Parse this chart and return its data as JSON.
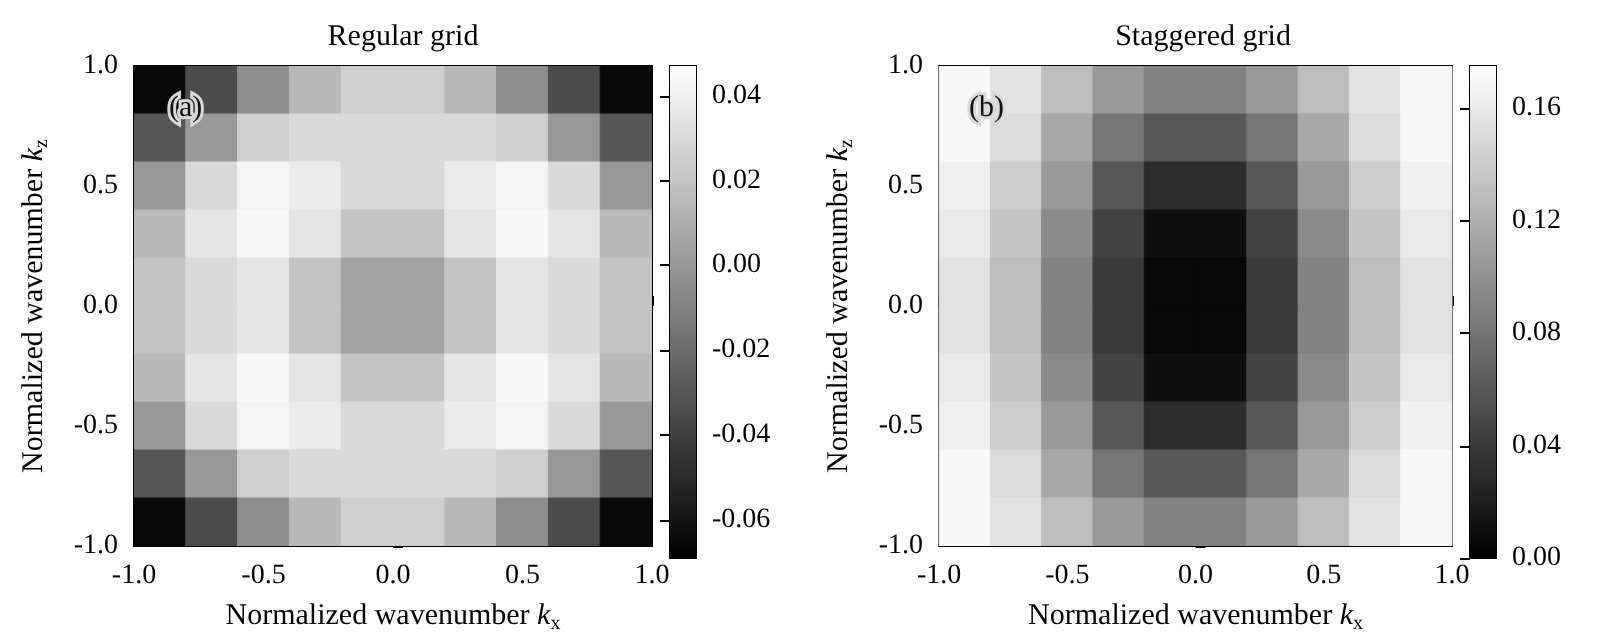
{
  "chart_data": [
    {
      "type": "heatmap",
      "title": "Regular grid",
      "xlabel": "Normalized wavenumber k$_{x}$",
      "ylabel": "Normalized wavenumber k$_{z}$",
      "annotations": [
        "(a)"
      ],
      "x": [
        -0.9,
        -0.7,
        -0.5,
        -0.3,
        -0.1,
        0.1,
        0.3,
        0.5,
        0.7,
        0.9
      ],
      "y": [
        0.9,
        0.7,
        0.5,
        0.3,
        0.1,
        -0.1,
        -0.3,
        -0.5,
        -0.7,
        -0.9
      ],
      "xlim": [
        -1,
        1
      ],
      "ylim": [
        -1,
        1
      ],
      "xticks": [
        {
          "value": -1,
          "label": "-1.0"
        },
        {
          "value": -0.5,
          "label": "-0.5"
        },
        {
          "value": 0,
          "label": "0.0"
        },
        {
          "value": 0.5,
          "label": "0.5"
        },
        {
          "value": 1,
          "label": "1.0"
        }
      ],
      "yticks": [
        {
          "value": -1,
          "label": "-1.0"
        },
        {
          "value": -0.5,
          "label": "-0.5"
        },
        {
          "value": 0,
          "label": "0.0"
        },
        {
          "value": 0.5,
          "label": "0.5"
        },
        {
          "value": 1,
          "label": "1.0"
        }
      ],
      "clim": [
        -0.069,
        0.047
      ],
      "cticks": [
        {
          "value": -0.06,
          "label": "-0.06"
        },
        {
          "value": -0.04,
          "label": "-0.04"
        },
        {
          "value": -0.02,
          "label": "-0.02"
        },
        {
          "value": 0,
          "label": "0.00"
        },
        {
          "value": 0.02,
          "label": "0.02"
        },
        {
          "value": 0.04,
          "label": "0.04"
        }
      ],
      "cells": [
        [
          -0.065,
          -0.035,
          -0.005,
          0.015,
          0.025,
          0.025,
          0.015,
          -0.005,
          -0.035,
          -0.065
        ],
        [
          -0.03,
          0,
          0.025,
          0.03,
          0.03,
          0.03,
          0.03,
          0.025,
          0,
          -0.03
        ],
        [
          0,
          0.03,
          0.042,
          0.038,
          0.03,
          0.03,
          0.038,
          0.042,
          0.03,
          0
        ],
        [
          0.015,
          0.035,
          0.044,
          0.035,
          0.02,
          0.02,
          0.035,
          0.044,
          0.035,
          0.015
        ],
        [
          0.02,
          0.03,
          0.035,
          0.02,
          0.005,
          0.005,
          0.02,
          0.035,
          0.03,
          0.02
        ],
        [
          0.02,
          0.03,
          0.035,
          0.02,
          0.005,
          0.005,
          0.02,
          0.035,
          0.03,
          0.02
        ],
        [
          0.015,
          0.035,
          0.044,
          0.035,
          0.02,
          0.02,
          0.035,
          0.044,
          0.035,
          0.015
        ],
        [
          0,
          0.03,
          0.042,
          0.038,
          0.03,
          0.03,
          0.038,
          0.042,
          0.03,
          0
        ],
        [
          -0.03,
          0,
          0.025,
          0.03,
          0.03,
          0.03,
          0.03,
          0.025,
          0,
          -0.03
        ],
        [
          -0.065,
          -0.035,
          -0.005,
          0.015,
          0.025,
          0.025,
          0.015,
          -0.005,
          -0.035,
          -0.065
        ]
      ]
    },
    {
      "type": "heatmap",
      "title": "Staggered grid",
      "xlabel": "Normalized wavenumber k$_{x}$",
      "ylabel": "Normalized wavenumber k$_{z}$",
      "annotations": [
        "(b)"
      ],
      "x": [
        -0.9,
        -0.7,
        -0.5,
        -0.3,
        -0.1,
        0.1,
        0.3,
        0.5,
        0.7,
        0.9
      ],
      "y": [
        0.9,
        0.7,
        0.5,
        0.3,
        0.1,
        -0.1,
        -0.3,
        -0.5,
        -0.7,
        -0.9
      ],
      "xlim": [
        -1,
        1
      ],
      "ylim": [
        -1,
        1
      ],
      "xticks": [
        {
          "value": -1,
          "label": "-1.0"
        },
        {
          "value": -0.5,
          "label": "-0.5"
        },
        {
          "value": 0,
          "label": "0.0"
        },
        {
          "value": 0.5,
          "label": "0.5"
        },
        {
          "value": 1,
          "label": "1.0"
        }
      ],
      "yticks": [
        {
          "value": -1,
          "label": "-1.0"
        },
        {
          "value": -0.5,
          "label": "-0.5"
        },
        {
          "value": 0,
          "label": "0.0"
        },
        {
          "value": 0.5,
          "label": "0.5"
        },
        {
          "value": 1,
          "label": "1.0"
        }
      ],
      "clim": [
        0,
        0.175
      ],
      "cticks": [
        {
          "value": 0,
          "label": "0.00"
        },
        {
          "value": 0.04,
          "label": "0.04"
        },
        {
          "value": 0.08,
          "label": "0.08"
        },
        {
          "value": 0.12,
          "label": "0.12"
        },
        {
          "value": 0.16,
          "label": "0.16"
        }
      ],
      "cells": [
        [
          0.17,
          0.155,
          0.13,
          0.105,
          0.09,
          0.09,
          0.105,
          0.13,
          0.155,
          0.17
        ],
        [
          0.17,
          0.15,
          0.115,
          0.08,
          0.06,
          0.06,
          0.08,
          0.115,
          0.15,
          0.17
        ],
        [
          0.165,
          0.14,
          0.105,
          0.06,
          0.03,
          0.03,
          0.06,
          0.105,
          0.14,
          0.165
        ],
        [
          0.16,
          0.135,
          0.095,
          0.045,
          0.01,
          0.01,
          0.045,
          0.095,
          0.135,
          0.16
        ],
        [
          0.155,
          0.13,
          0.09,
          0.04,
          0.005,
          0.005,
          0.04,
          0.09,
          0.13,
          0.155
        ],
        [
          0.155,
          0.13,
          0.09,
          0.04,
          0.005,
          0.005,
          0.04,
          0.09,
          0.13,
          0.155
        ],
        [
          0.16,
          0.135,
          0.095,
          0.045,
          0.01,
          0.01,
          0.045,
          0.095,
          0.135,
          0.16
        ],
        [
          0.165,
          0.14,
          0.105,
          0.06,
          0.03,
          0.03,
          0.06,
          0.105,
          0.14,
          0.165
        ],
        [
          0.17,
          0.15,
          0.115,
          0.08,
          0.06,
          0.06,
          0.08,
          0.115,
          0.15,
          0.17
        ],
        [
          0.17,
          0.155,
          0.13,
          0.105,
          0.09,
          0.09,
          0.105,
          0.13,
          0.155,
          0.17
        ]
      ]
    }
  ]
}
